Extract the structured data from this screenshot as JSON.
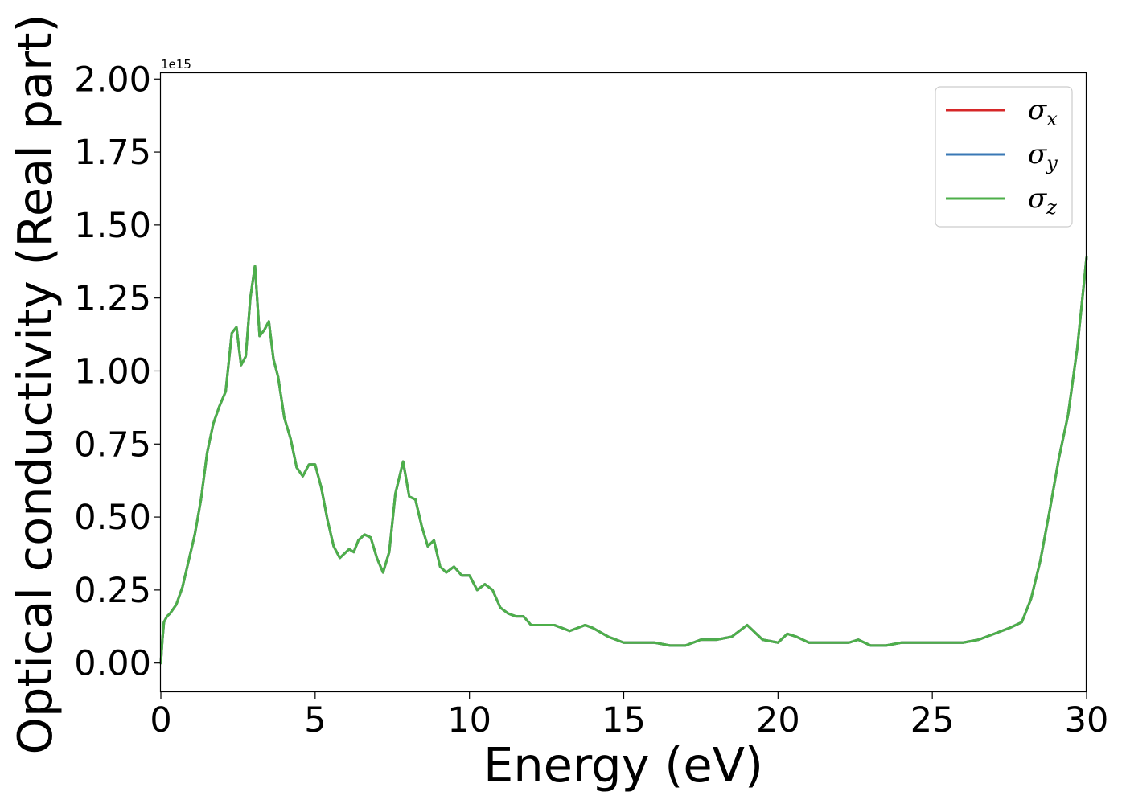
{
  "chart_data": {
    "type": "line",
    "xlabel": "Energy (eV)",
    "ylabel": "Optical conductivity (Real part)",
    "y_offset_label": "1e15",
    "xlim": [
      0,
      30
    ],
    "ylim": [
      -0.1,
      2.02
    ],
    "x_ticks": [
      0,
      5,
      10,
      15,
      20,
      25,
      30
    ],
    "x_tick_labels": [
      "0",
      "5",
      "10",
      "15",
      "20",
      "25",
      "30"
    ],
    "y_ticks": [
      0,
      0.25,
      0.5,
      0.75,
      1.0,
      1.25,
      1.5,
      1.75,
      2.0
    ],
    "y_tick_labels": [
      "0.00",
      "0.25",
      "0.50",
      "0.75",
      "1.00",
      "1.25",
      "1.50",
      "1.75",
      "2.00"
    ],
    "grid": false,
    "legend_position": "top-right",
    "colors": {
      "sigma_x": "#d62728",
      "sigma_y": "#3a78b5",
      "sigma_z": "#4daf4a"
    },
    "series": [
      {
        "name": "σx",
        "symbol": "σ",
        "sub": "x",
        "color": "#d62728"
      },
      {
        "name": "σy",
        "symbol": "σ",
        "sub": "y",
        "color": "#3a78b5"
      },
      {
        "name": "σz",
        "symbol": "σ",
        "sub": "z",
        "color": "#4daf4a"
      }
    ],
    "x": [
      0.0,
      0.05,
      0.1,
      0.2,
      0.3,
      0.5,
      0.7,
      0.9,
      1.1,
      1.3,
      1.5,
      1.7,
      1.9,
      2.1,
      2.3,
      2.45,
      2.6,
      2.75,
      2.9,
      3.05,
      3.2,
      3.35,
      3.5,
      3.65,
      3.8,
      4.0,
      4.2,
      4.4,
      4.6,
      4.8,
      5.0,
      5.2,
      5.4,
      5.6,
      5.8,
      6.0,
      6.1,
      6.25,
      6.4,
      6.6,
      6.8,
      7.0,
      7.2,
      7.4,
      7.6,
      7.85,
      8.05,
      8.25,
      8.45,
      8.65,
      8.85,
      9.05,
      9.25,
      9.5,
      9.75,
      10.0,
      10.25,
      10.5,
      10.75,
      11.0,
      11.25,
      11.5,
      11.75,
      12.0,
      12.25,
      12.5,
      12.75,
      13.0,
      13.25,
      13.5,
      13.75,
      14.0,
      14.5,
      15.0,
      15.5,
      16.0,
      16.5,
      17.0,
      17.5,
      18.0,
      18.5,
      19.0,
      19.5,
      20.0,
      20.3,
      20.6,
      21.0,
      21.5,
      22.0,
      22.3,
      22.6,
      23.0,
      23.5,
      24.0,
      24.5,
      25.0,
      25.5,
      26.0,
      26.5,
      27.0,
      27.5,
      27.9,
      28.2,
      28.5,
      28.8,
      29.1,
      29.4,
      29.7,
      30.0
    ],
    "values": [
      0.0,
      0.08,
      0.14,
      0.16,
      0.17,
      0.2,
      0.26,
      0.35,
      0.44,
      0.56,
      0.72,
      0.82,
      0.88,
      0.93,
      1.13,
      1.15,
      1.02,
      1.05,
      1.25,
      1.36,
      1.12,
      1.14,
      1.17,
      1.04,
      0.98,
      0.84,
      0.77,
      0.67,
      0.64,
      0.68,
      0.68,
      0.6,
      0.49,
      0.4,
      0.36,
      0.38,
      0.39,
      0.38,
      0.42,
      0.44,
      0.43,
      0.36,
      0.31,
      0.38,
      0.58,
      0.69,
      0.57,
      0.56,
      0.47,
      0.4,
      0.42,
      0.33,
      0.31,
      0.33,
      0.3,
      0.3,
      0.25,
      0.27,
      0.25,
      0.19,
      0.17,
      0.16,
      0.16,
      0.13,
      0.13,
      0.13,
      0.13,
      0.12,
      0.11,
      0.12,
      0.13,
      0.12,
      0.09,
      0.07,
      0.07,
      0.07,
      0.06,
      0.06,
      0.08,
      0.08,
      0.09,
      0.13,
      0.08,
      0.07,
      0.1,
      0.09,
      0.07,
      0.07,
      0.07,
      0.07,
      0.08,
      0.06,
      0.06,
      0.07,
      0.07,
      0.07,
      0.07,
      0.07,
      0.08,
      0.1,
      0.12,
      0.14,
      0.22,
      0.35,
      0.52,
      0.7,
      0.85,
      1.08,
      1.39
    ]
  }
}
